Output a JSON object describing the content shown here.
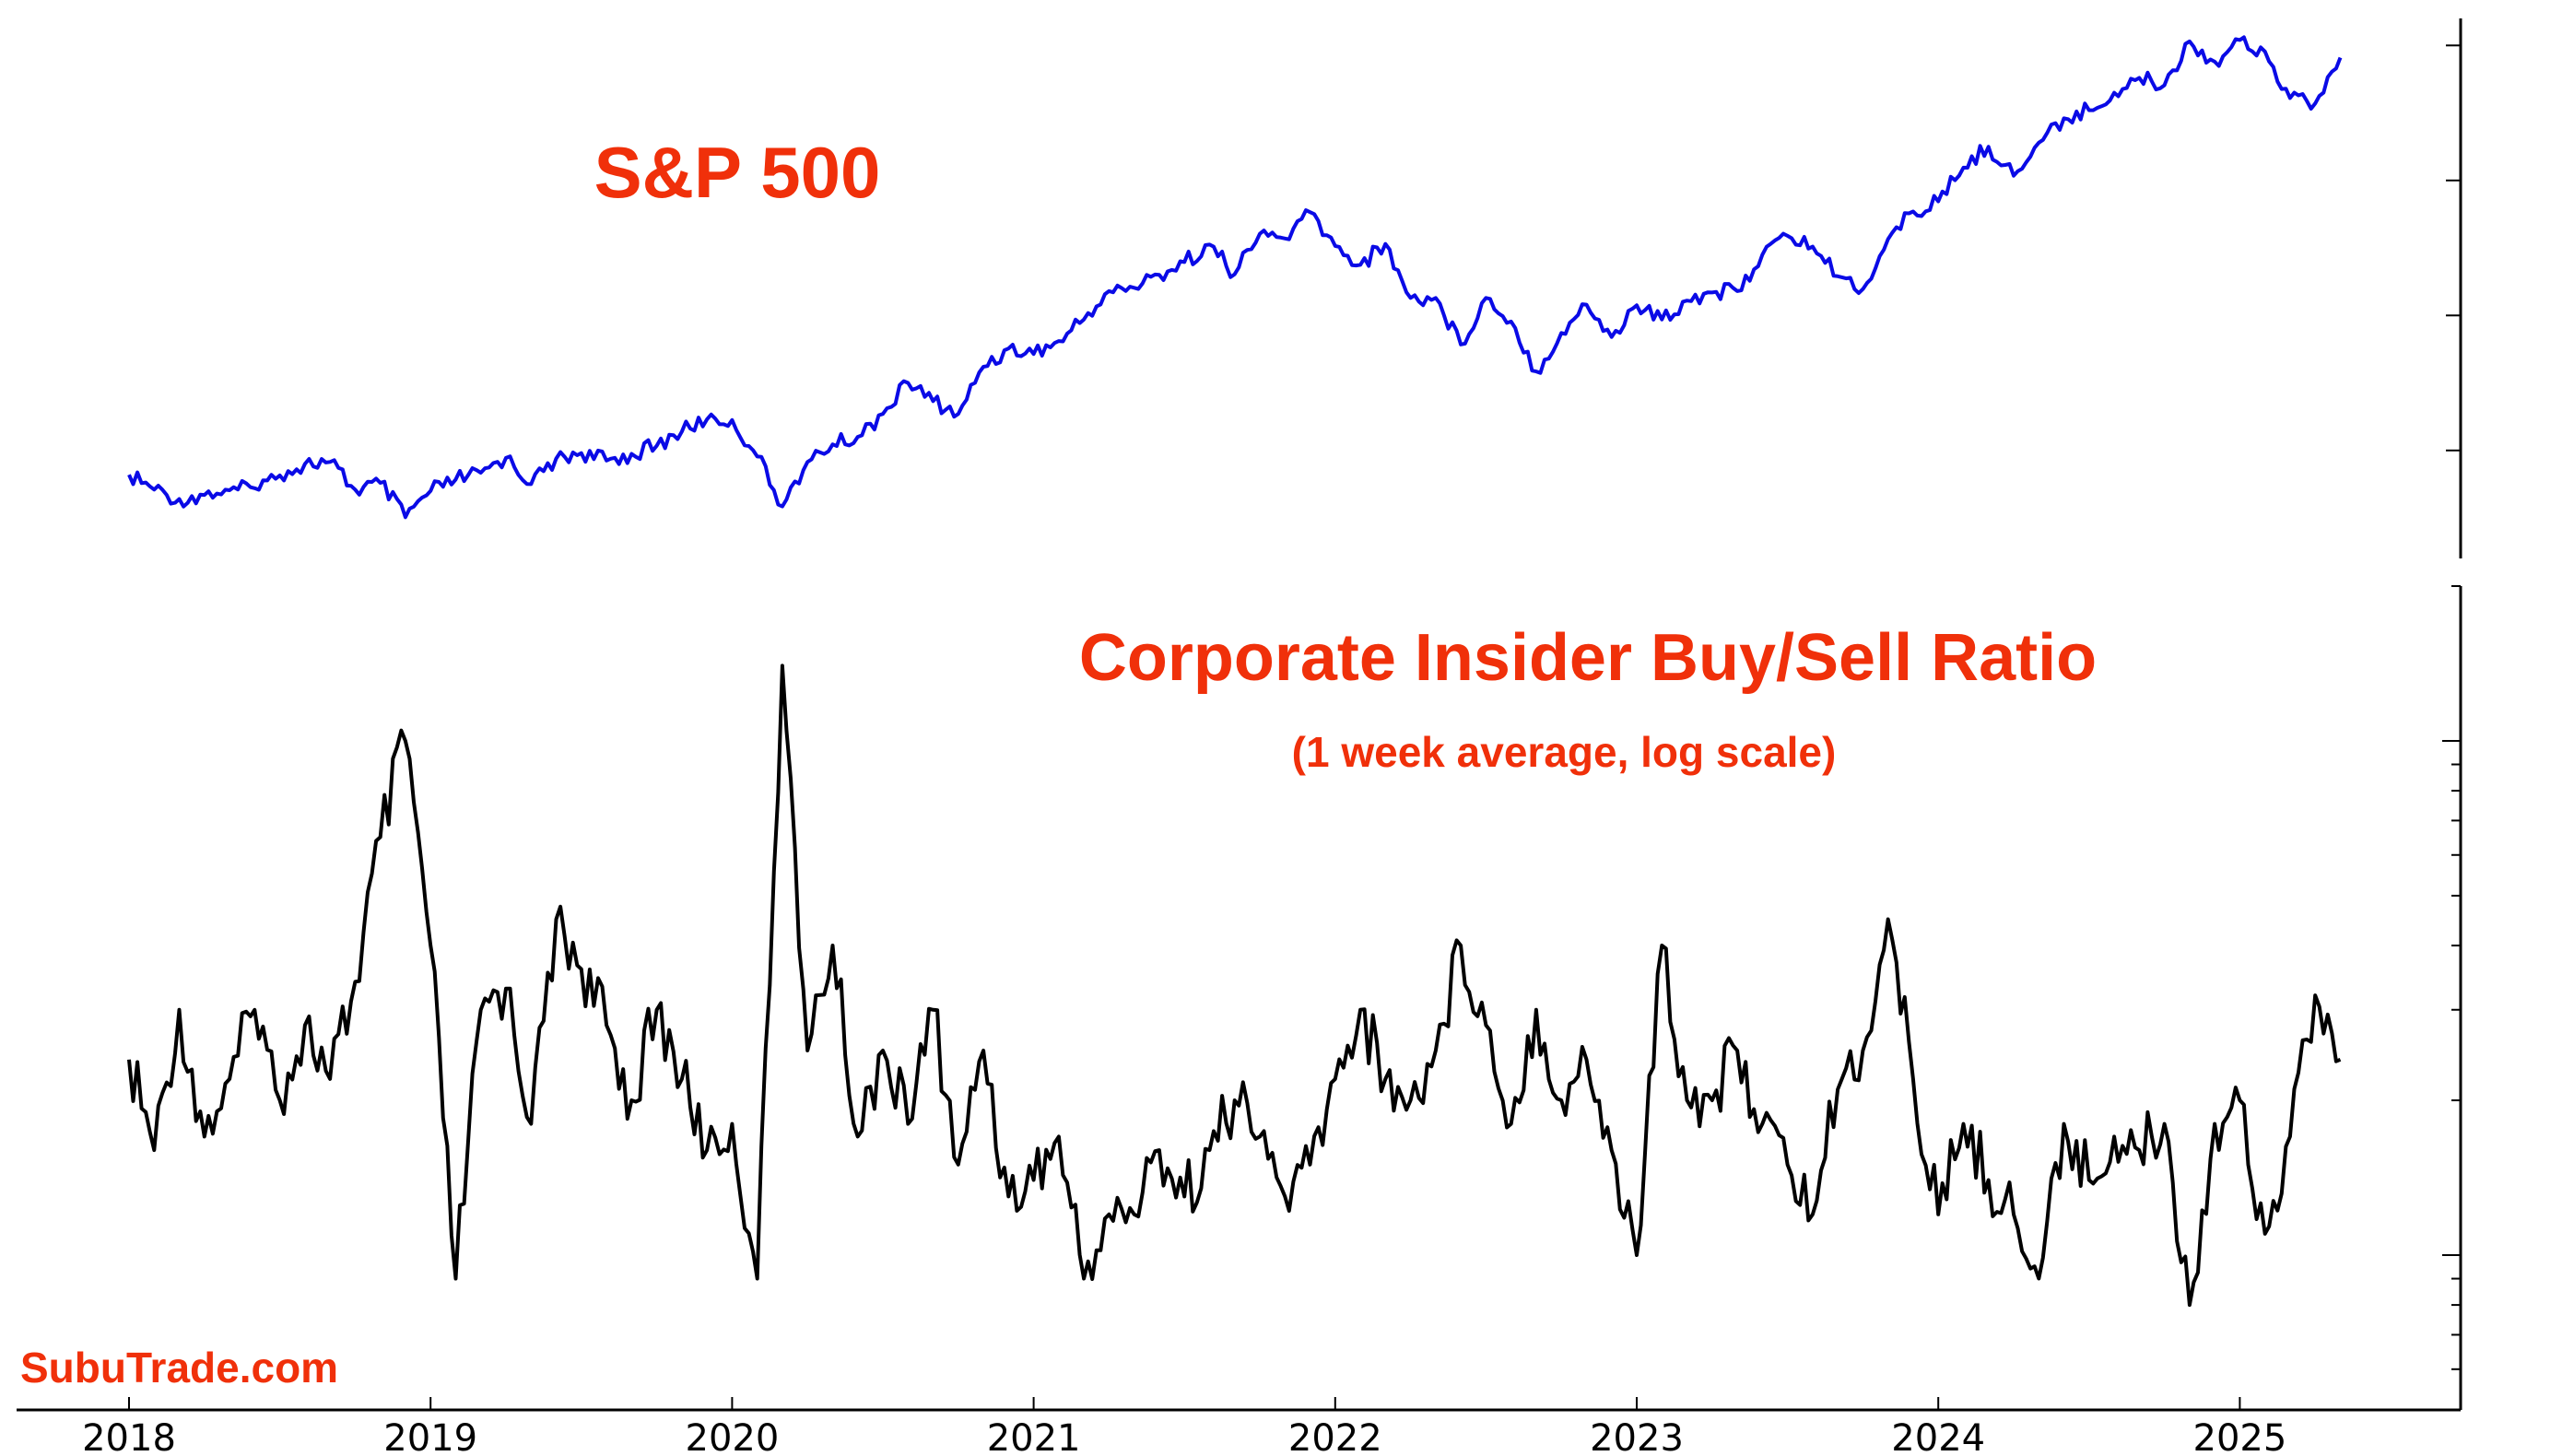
{
  "chart_data": [
    {
      "type": "line",
      "title": "S&P 500",
      "x_range": [
        "2018-01",
        "2025-05"
      ],
      "y_scale": "linear",
      "ylim": [
        2200,
        6200
      ],
      "colors": {
        "line": "#0a0ae6",
        "title": "#f0300a"
      },
      "series": [
        {
          "name": "S&P 500",
          "x": [
            "2018-01",
            "2018-02",
            "2018-03",
            "2018-04",
            "2018-05",
            "2018-06",
            "2018-07",
            "2018-08",
            "2018-09",
            "2018-10",
            "2018-11",
            "2018-12",
            "2019-01",
            "2019-02",
            "2019-03",
            "2019-04",
            "2019-05",
            "2019-06",
            "2019-07",
            "2019-08",
            "2019-09",
            "2019-10",
            "2019-11",
            "2019-12",
            "2020-01",
            "2020-02",
            "2020-03",
            "2020-04",
            "2020-05",
            "2020-06",
            "2020-07",
            "2020-08",
            "2020-09",
            "2020-10",
            "2020-11",
            "2020-12",
            "2021-01",
            "2021-02",
            "2021-03",
            "2021-04",
            "2021-05",
            "2021-06",
            "2021-07",
            "2021-08",
            "2021-09",
            "2021-10",
            "2021-11",
            "2021-12",
            "2022-01",
            "2022-02",
            "2022-03",
            "2022-04",
            "2022-05",
            "2022-06",
            "2022-07",
            "2022-08",
            "2022-09",
            "2022-10",
            "2022-11",
            "2022-12",
            "2023-01",
            "2023-02",
            "2023-03",
            "2023-04",
            "2023-05",
            "2023-06",
            "2023-07",
            "2023-08",
            "2023-09",
            "2023-10",
            "2023-11",
            "2023-12",
            "2024-01",
            "2024-02",
            "2024-03",
            "2024-04",
            "2024-05",
            "2024-06",
            "2024-07",
            "2024-08",
            "2024-09",
            "2024-10",
            "2024-11",
            "2024-12",
            "2025-01",
            "2025-02",
            "2025-03",
            "2025-04",
            "2025-05"
          ],
          "values": [
            2820,
            2710,
            2640,
            2670,
            2705,
            2720,
            2815,
            2900,
            2915,
            2710,
            2760,
            2505,
            2700,
            2785,
            2835,
            2945,
            2750,
            2940,
            2980,
            2925,
            2975,
            3035,
            3140,
            3230,
            3225,
            2955,
            2585,
            2915,
            3045,
            3100,
            3270,
            3500,
            3365,
            3270,
            3620,
            3755,
            3715,
            3810,
            3970,
            4180,
            4205,
            4300,
            4395,
            4525,
            4305,
            4605,
            4570,
            4765,
            4515,
            4375,
            4530,
            4130,
            4130,
            3785,
            4130,
            3955,
            3585,
            3870,
            4080,
            3840,
            4075,
            3970,
            4110,
            4170,
            4180,
            4450,
            4590,
            4510,
            4290,
            4195,
            4565,
            4770,
            4845,
            5095,
            5250,
            5035,
            5280,
            5460,
            5520,
            5650,
            5760,
            5705,
            6030,
            5880,
            6040,
            5955,
            5610,
            5570,
            5910
          ]
        }
      ]
    },
    {
      "type": "line",
      "title": "Corporate Insider Buy/Sell Ratio",
      "subtitle": "(1 week average, log scale)",
      "x_range": [
        "2018-01",
        "2025-05"
      ],
      "y_scale": "log",
      "ylim": [
        0.05,
        2.0
      ],
      "colors": {
        "line": "#000000",
        "title": "#f0300a"
      },
      "series": [
        {
          "name": "Corporate Insider Buy/Sell Ratio",
          "x": [
            "2018-01",
            "2018-02",
            "2018-03",
            "2018-04",
            "2018-05",
            "2018-06",
            "2018-07",
            "2018-08",
            "2018-09",
            "2018-10",
            "2018-11",
            "2018-12",
            "2019-01",
            "2019-02",
            "2019-03",
            "2019-04",
            "2019-05",
            "2019-06",
            "2019-07",
            "2019-08",
            "2019-09",
            "2019-10",
            "2019-11",
            "2019-12",
            "2020-01",
            "2020-02",
            "2020-03",
            "2020-04",
            "2020-05",
            "2020-06",
            "2020-07",
            "2020-08",
            "2020-09",
            "2020-10",
            "2020-11",
            "2020-12",
            "2021-01",
            "2021-02",
            "2021-03",
            "2021-04",
            "2021-05",
            "2021-06",
            "2021-07",
            "2021-08",
            "2021-09",
            "2021-10",
            "2021-11",
            "2021-12",
            "2022-01",
            "2022-02",
            "2022-03",
            "2022-04",
            "2022-05",
            "2022-06",
            "2022-07",
            "2022-08",
            "2022-09",
            "2022-10",
            "2022-11",
            "2022-12",
            "2023-01",
            "2023-02",
            "2023-03",
            "2023-04",
            "2023-05",
            "2023-06",
            "2023-07",
            "2023-08",
            "2023-09",
            "2023-10",
            "2023-11",
            "2023-12",
            "2024-01",
            "2024-02",
            "2024-03",
            "2024-04",
            "2024-05",
            "2024-06",
            "2024-07",
            "2024-08",
            "2024-09",
            "2024-10",
            "2024-11",
            "2024-12",
            "2025-01",
            "2025-02",
            "2025-03",
            "2025-04",
            "2025-05"
          ],
          "values": [
            0.24,
            0.16,
            0.3,
            0.17,
            0.22,
            0.3,
            0.2,
            0.28,
            0.22,
            0.34,
            0.65,
            1.0,
            0.4,
            0.09,
            0.3,
            0.33,
            0.18,
            0.45,
            0.36,
            0.28,
            0.2,
            0.3,
            0.22,
            0.16,
            0.18,
            0.09,
            1.4,
            0.25,
            0.4,
            0.17,
            0.25,
            0.18,
            0.3,
            0.15,
            0.25,
            0.13,
            0.14,
            0.17,
            0.09,
            0.12,
            0.12,
            0.16,
            0.13,
            0.16,
            0.2,
            0.17,
            0.13,
            0.15,
            0.22,
            0.3,
            0.22,
            0.2,
            0.25,
            0.4,
            0.28,
            0.18,
            0.3,
            0.2,
            0.24,
            0.16,
            0.1,
            0.4,
            0.2,
            0.2,
            0.25,
            0.18,
            0.15,
            0.12,
            0.21,
            0.25,
            0.45,
            0.22,
            0.12,
            0.18,
            0.14,
            0.12,
            0.09,
            0.18,
            0.14,
            0.17,
            0.16,
            0.18,
            0.08,
            0.18,
            0.2,
            0.11,
            0.17,
            0.32,
            0.24
          ]
        }
      ]
    }
  ],
  "x_ticks": [
    "2018",
    "2019",
    "2020",
    "2021",
    "2022",
    "2023",
    "2024",
    "2025"
  ],
  "watermark": "SubuTrade.com",
  "colors": {
    "accent": "#f0300a"
  }
}
